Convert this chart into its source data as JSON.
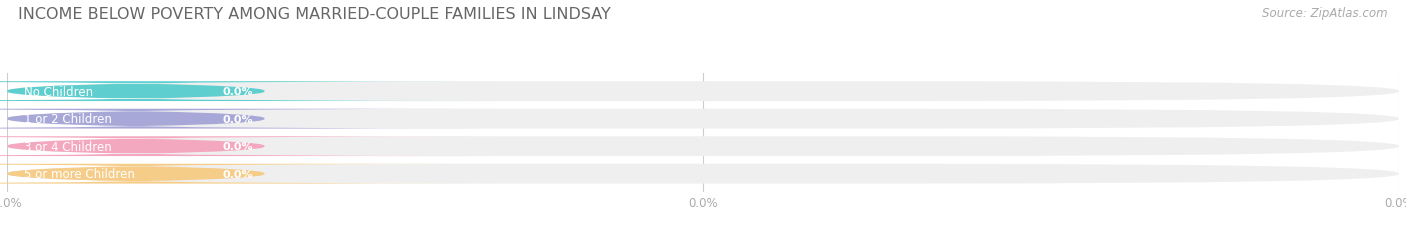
{
  "title": "INCOME BELOW POVERTY AMONG MARRIED-COUPLE FAMILIES IN LINDSAY",
  "source": "Source: ZipAtlas.com",
  "categories": [
    "No Children",
    "1 or 2 Children",
    "3 or 4 Children",
    "5 or more Children"
  ],
  "values": [
    0.0,
    0.0,
    0.0,
    0.0
  ],
  "bar_colors": [
    "#5ecece",
    "#a8a8d8",
    "#f4a8c0",
    "#f5cc88"
  ],
  "bar_bg_color": "#efefef",
  "background_color": "#ffffff",
  "title_fontsize": 11.5,
  "label_fontsize": 8.5,
  "value_fontsize": 8.0,
  "tick_fontsize": 8.5,
  "source_fontsize": 8.5,
  "grid_color": "#cccccc",
  "label_color": "#666666",
  "tick_color": "#aaaaaa",
  "value_color": "#ffffff",
  "source_color": "#aaaaaa"
}
